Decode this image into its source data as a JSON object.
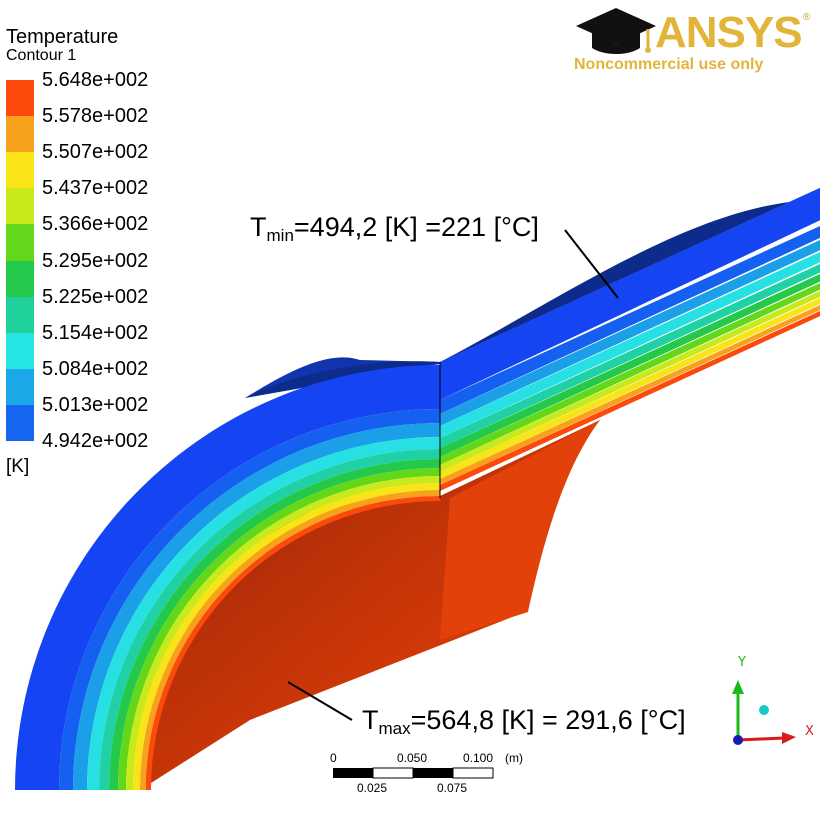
{
  "legend": {
    "title": "Temperature",
    "subtitle": "Contour 1",
    "units": "[K]",
    "ticks": [
      "5.648e+002",
      "5.578e+002",
      "5.507e+002",
      "5.437e+002",
      "5.366e+002",
      "5.295e+002",
      "5.225e+002",
      "5.154e+002",
      "5.084e+002",
      "5.013e+002",
      "4.942e+002"
    ],
    "colors": [
      "#fb4a0c",
      "#f8a11c",
      "#f8e417",
      "#c8ea1c",
      "#63d81a",
      "#24c84a",
      "#21d19c",
      "#27e5e5",
      "#1ba8e8",
      "#1666f0",
      "#1545f2"
    ]
  },
  "logo": {
    "brand": "ANSYS",
    "registered": "®",
    "subtitle": "Noncommercial use only",
    "icon": "graduation-cap-icon"
  },
  "annotations": {
    "tmin": {
      "sym": "T",
      "sub": "min",
      "text": "=494,2 [K] =221 [°C]"
    },
    "tmax": {
      "sym": "T",
      "sub": "max",
      "text": "=564,8 [K] = 291,6 [°C]"
    }
  },
  "scale_bar": {
    "top_labels": [
      "0",
      "0.050",
      "0.100"
    ],
    "unit": "(m)",
    "bottom_labels": [
      "0.025",
      "0.075"
    ]
  },
  "axes": {
    "x": "X",
    "y": "Y"
  },
  "colors": {
    "hot": "#f34408",
    "cold": "#1545f2",
    "logo_gold": "#e2b53a"
  }
}
